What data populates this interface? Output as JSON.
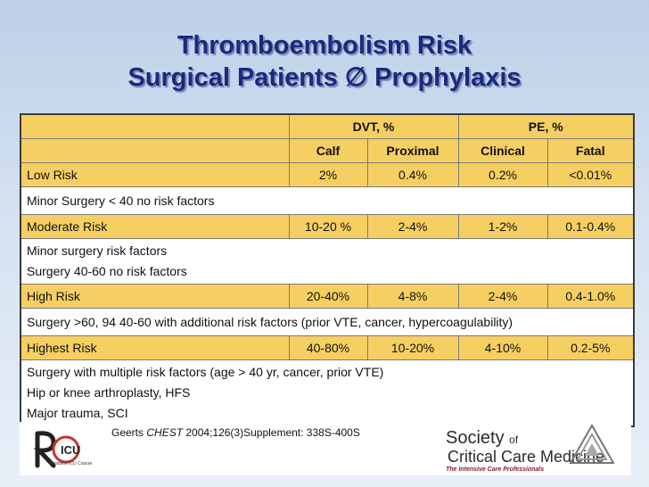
{
  "title": {
    "line1": "Thromboembolism Risk",
    "line2": "Surgical Patients ∅ Prophylaxis"
  },
  "table": {
    "group_headers": [
      "DVT, %",
      "PE, %"
    ],
    "sub_headers": [
      "Calf",
      "Proximal",
      "Clinical",
      "Fatal"
    ],
    "rows": [
      {
        "label": "Low Risk",
        "values": [
          "2%",
          "0.4%",
          "0.2%",
          "<0.01%"
        ]
      },
      {
        "lines": [
          "Minor Surgery < 40 no risk factors"
        ]
      },
      {
        "label": "Moderate Risk",
        "values": [
          "10-20 %",
          "2-4%",
          "1-2%",
          "0.1-0.4%"
        ]
      },
      {
        "lines": [
          "Minor surgery risk factors",
          "Surgery 40-60 no risk factors"
        ]
      },
      {
        "label": "High Risk",
        "values": [
          "20-40%",
          "4-8%",
          "2-4%",
          "0.4-1.0%"
        ]
      },
      {
        "lines": [
          "Surgery >60, 94 40-60 with additional risk factors (prior VTE, cancer, hypercoagulability)"
        ]
      },
      {
        "label": "Highest Risk",
        "values": [
          "40-80%",
          "10-20%",
          "4-10%",
          "0.2-5%"
        ]
      },
      {
        "lines": [
          "Surgery with multiple risk factors (age > 40 yr, cancer, prior VTE)",
          "Hip or knee arthroplasty, HFS",
          "Major trauma, SCI"
        ]
      }
    ]
  },
  "citation": {
    "author": "Geerts",
    "journal": "CHEST",
    "rest": "2004;126(3)Supplement: 338S-400S"
  },
  "logo_left": {
    "text": "Resident ICU Course"
  },
  "logo_right": {
    "society": "Society",
    "of": "of",
    "name": "Critical Care Medicine",
    "tagline": "The Intensive Care Professionals"
  },
  "colors": {
    "gold": "#f6cf62",
    "title": "#1a2a7c",
    "logo_red": "#c0392b"
  }
}
